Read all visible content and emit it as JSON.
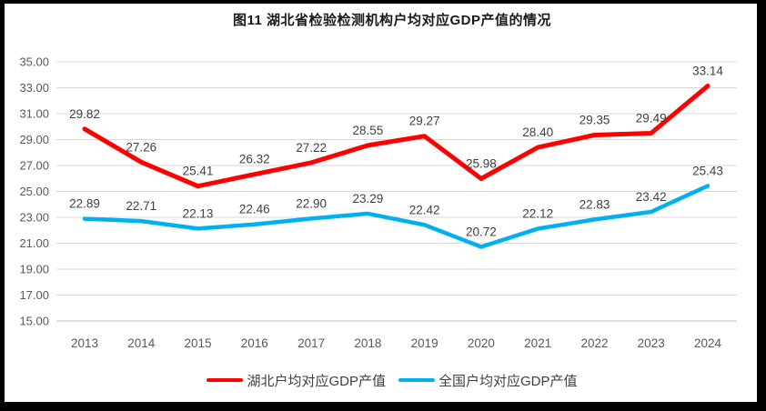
{
  "title": "图11  湖北省检验检测机构户均对应GDP产值的情况",
  "chart_data": {
    "type": "line",
    "title": "图11  湖北省检验检测机构户均对应GDP产值的情况",
    "categories": [
      "2013",
      "2014",
      "2015",
      "2016",
      "2017",
      "2018",
      "2019",
      "2020",
      "2021",
      "2022",
      "2023",
      "2024"
    ],
    "series": [
      {
        "name": "湖北户均对应GDP产值",
        "color": "#FF0000",
        "values": [
          29.82,
          27.26,
          25.41,
          26.32,
          27.22,
          28.55,
          29.27,
          25.98,
          28.4,
          29.35,
          29.49,
          33.14
        ]
      },
      {
        "name": "全国户均对应GDP产值",
        "color": "#00B0F0",
        "values": [
          22.89,
          22.71,
          22.13,
          22.46,
          22.9,
          23.29,
          22.42,
          20.72,
          22.12,
          22.83,
          23.42,
          25.43
        ]
      }
    ],
    "xlabel": "",
    "ylabel": "",
    "ylim": [
      15,
      35
    ],
    "ytick_step": 2,
    "ytick_labels": [
      "15.00",
      "17.00",
      "19.00",
      "21.00",
      "23.00",
      "25.00",
      "27.00",
      "29.00",
      "31.00",
      "33.00",
      "35.00"
    ],
    "grid": true,
    "data_labels": true,
    "legend_position": "bottom",
    "colors": {
      "gridline": "#D9D9D9",
      "axis_line": "#BFBFBF",
      "tick_text": "#595959",
      "data_label_text": "#404040",
      "title_text": "#1a1a1a"
    }
  }
}
